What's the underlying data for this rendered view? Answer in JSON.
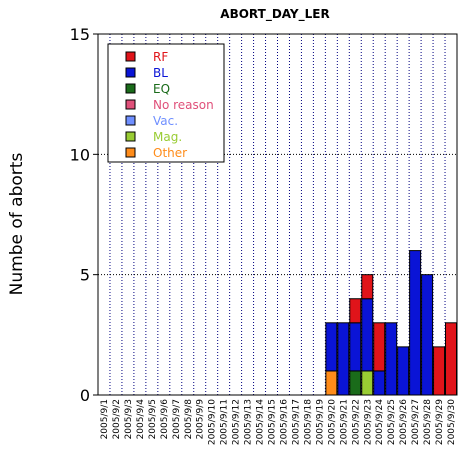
{
  "chart_data": {
    "type": "bar",
    "stacked": true,
    "title": "ABORT_DAY_LER",
    "xlabel": "",
    "ylabel": "Numbe of aborts",
    "ylim": [
      0,
      15
    ],
    "yticks": [
      0,
      5,
      10,
      15
    ],
    "grid": true,
    "legend_position": "top-left",
    "categories": [
      "2005/9/1",
      "2005/9/2",
      "2005/9/3",
      "2005/9/4",
      "2005/9/5",
      "2005/9/6",
      "2005/9/7",
      "2005/9/8",
      "2005/9/9",
      "2005/9/10",
      "2005/9/11",
      "2005/9/12",
      "2005/9/13",
      "2005/9/14",
      "2005/9/15",
      "2005/9/16",
      "2005/9/17",
      "2005/9/18",
      "2005/9/19",
      "2005/9/20",
      "2005/9/21",
      "2005/9/22",
      "2005/9/23",
      "2005/9/24",
      "2005/9/25",
      "2005/9/26",
      "2005/9/27",
      "2005/9/28",
      "2005/9/29",
      "2005/9/30"
    ],
    "series": [
      {
        "name": "Other",
        "color": "#ff8c1a",
        "values": [
          0,
          0,
          0,
          0,
          0,
          0,
          0,
          0,
          0,
          0,
          0,
          0,
          0,
          0,
          0,
          0,
          0,
          0,
          0,
          1,
          0,
          0,
          0,
          0,
          0,
          0,
          0,
          0,
          0,
          0
        ]
      },
      {
        "name": "Mag.",
        "color": "#99cc33",
        "values": [
          0,
          0,
          0,
          0,
          0,
          0,
          0,
          0,
          0,
          0,
          0,
          0,
          0,
          0,
          0,
          0,
          0,
          0,
          0,
          0,
          0,
          0,
          1,
          0,
          0,
          0,
          0,
          0,
          0,
          0
        ]
      },
      {
        "name": "EQ",
        "color": "#1a6b1a",
        "values": [
          0,
          0,
          0,
          0,
          0,
          0,
          0,
          0,
          0,
          0,
          0,
          0,
          0,
          0,
          0,
          0,
          0,
          0,
          0,
          0,
          0,
          1,
          0,
          0,
          0,
          0,
          0,
          0,
          0,
          0
        ]
      },
      {
        "name": "BL",
        "color": "#0a14d6",
        "values": [
          0,
          0,
          0,
          0,
          0,
          0,
          0,
          0,
          0,
          0,
          0,
          0,
          0,
          0,
          0,
          0,
          0,
          0,
          0,
          2,
          3,
          2,
          3,
          1,
          3,
          2,
          6,
          5,
          0,
          0
        ]
      },
      {
        "name": "RF",
        "color": "#e0141a",
        "values": [
          0,
          0,
          0,
          0,
          0,
          0,
          0,
          0,
          0,
          0,
          0,
          0,
          0,
          0,
          0,
          0,
          0,
          0,
          0,
          0,
          0,
          1,
          1,
          2,
          0,
          0,
          0,
          0,
          2,
          3
        ]
      },
      {
        "name": "No reason",
        "color": "#e0507a",
        "values": [
          0,
          0,
          0,
          0,
          0,
          0,
          0,
          0,
          0,
          0,
          0,
          0,
          0,
          0,
          0,
          0,
          0,
          0,
          0,
          0,
          0,
          0,
          0,
          0,
          0,
          0,
          0,
          0,
          0,
          0
        ]
      },
      {
        "name": "Vac.",
        "color": "#6f8fff",
        "values": [
          0,
          0,
          0,
          0,
          0,
          0,
          0,
          0,
          0,
          0,
          0,
          0,
          0,
          0,
          0,
          0,
          0,
          0,
          0,
          0,
          0,
          0,
          0,
          0,
          0,
          0,
          0,
          0,
          0,
          0
        ]
      }
    ],
    "legend_order": [
      "RF",
      "BL",
      "EQ",
      "No reason",
      "Vac.",
      "Mag.",
      "Other"
    ]
  }
}
